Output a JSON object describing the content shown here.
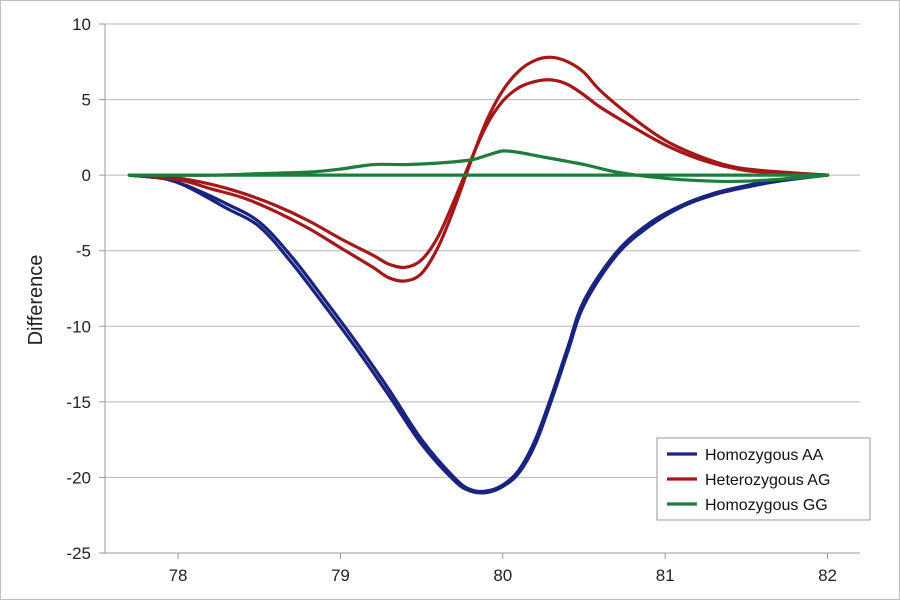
{
  "chart_data": {
    "type": "line",
    "title": "",
    "xlabel": "",
    "ylabel": "Difference",
    "xlim": [
      77.55,
      82.2
    ],
    "ylim": [
      -25,
      10
    ],
    "x_ticks": [
      "78",
      "79",
      "80",
      "81",
      "82"
    ],
    "y_ticks": [
      "10",
      "5",
      "0",
      "-5",
      "-10",
      "-15",
      "-20",
      "-25"
    ],
    "grid": "horizontal",
    "legend_position": "bottom-right",
    "colors": {
      "Homozygous AA": "#1a237e",
      "Heterozygous AG": "#a31818",
      "Homozygous GG": "#1e7d3a"
    },
    "series": [
      {
        "name": "Homozygous AA",
        "x": [
          77.7,
          77.9,
          78.0,
          78.1,
          78.3,
          78.5,
          78.7,
          78.9,
          79.1,
          79.3,
          79.5,
          79.7,
          79.8,
          79.9,
          80.0,
          80.1,
          80.2,
          80.3,
          80.4,
          80.5,
          80.7,
          80.9,
          81.1,
          81.3,
          81.5,
          81.7,
          82.0
        ],
        "y": [
          0,
          -0.2,
          -0.5,
          -1.0,
          -2.2,
          -3.4,
          -5.8,
          -8.6,
          -11.5,
          -14.6,
          -17.8,
          -20.2,
          -20.9,
          -21.0,
          -20.6,
          -19.7,
          -17.8,
          -14.9,
          -11.7,
          -8.6,
          -5.3,
          -3.4,
          -2.1,
          -1.3,
          -0.8,
          -0.4,
          0
        ]
      },
      {
        "name": "Homozygous AA",
        "x": [
          77.7,
          77.9,
          78.0,
          78.1,
          78.3,
          78.5,
          78.7,
          78.9,
          79.1,
          79.3,
          79.5,
          79.7,
          79.8,
          79.9,
          80.0,
          80.1,
          80.2,
          80.3,
          80.4,
          80.5,
          80.7,
          80.9,
          81.1,
          81.3,
          81.5,
          81.7,
          82.0
        ],
        "y": [
          0,
          -0.2,
          -0.5,
          -0.9,
          -1.9,
          -3.1,
          -5.4,
          -8.2,
          -11.1,
          -14.2,
          -17.5,
          -20.0,
          -20.8,
          -20.9,
          -20.5,
          -19.5,
          -17.5,
          -14.6,
          -11.4,
          -8.3,
          -5.1,
          -3.2,
          -2.0,
          -1.2,
          -0.7,
          -0.3,
          0
        ]
      },
      {
        "name": "Heterozygous AG",
        "x": [
          77.7,
          78.0,
          78.2,
          78.4,
          78.6,
          78.8,
          79.0,
          79.2,
          79.3,
          79.4,
          79.5,
          79.6,
          79.7,
          79.8,
          79.9,
          80.0,
          80.1,
          80.2,
          80.3,
          80.4,
          80.5,
          80.6,
          80.8,
          81.0,
          81.2,
          81.4,
          81.6,
          82.0
        ],
        "y": [
          0,
          -0.3,
          -0.9,
          -1.5,
          -2.4,
          -3.5,
          -4.8,
          -6.1,
          -6.8,
          -7.0,
          -6.5,
          -4.8,
          -2.2,
          0.8,
          3.6,
          5.6,
          6.9,
          7.6,
          7.8,
          7.5,
          6.8,
          5.6,
          3.8,
          2.3,
          1.3,
          0.6,
          0.3,
          0
        ]
      },
      {
        "name": "Heterozygous AG",
        "x": [
          77.7,
          78.0,
          78.2,
          78.4,
          78.6,
          78.8,
          79.0,
          79.2,
          79.3,
          79.4,
          79.5,
          79.6,
          79.7,
          79.8,
          79.9,
          80.0,
          80.1,
          80.2,
          80.3,
          80.4,
          80.5,
          80.6,
          80.8,
          81.0,
          81.2,
          81.4,
          81.6,
          82.0
        ],
        "y": [
          0,
          -0.2,
          -0.6,
          -1.2,
          -2.0,
          -3.0,
          -4.2,
          -5.3,
          -5.9,
          -6.1,
          -5.6,
          -4.1,
          -1.7,
          0.9,
          3.3,
          4.9,
          5.8,
          6.2,
          6.3,
          6.0,
          5.3,
          4.5,
          3.2,
          2.0,
          1.1,
          0.5,
          0.2,
          0
        ]
      },
      {
        "name": "Homozygous GG",
        "x": [
          77.7,
          78.2,
          78.5,
          78.8,
          79.0,
          79.2,
          79.4,
          79.6,
          79.8,
          79.9,
          80.0,
          80.1,
          80.2,
          80.3,
          80.5,
          80.7,
          80.9,
          81.1,
          81.3,
          81.5,
          81.8,
          82.0
        ],
        "y": [
          0,
          0,
          0.1,
          0.2,
          0.4,
          0.7,
          0.7,
          0.8,
          1.0,
          1.3,
          1.6,
          1.5,
          1.3,
          1.1,
          0.7,
          0.2,
          -0.1,
          -0.3,
          -0.4,
          -0.4,
          -0.2,
          0
        ]
      },
      {
        "name": "Homozygous GG",
        "x": [
          77.7,
          82.0
        ],
        "y": [
          0,
          0
        ]
      }
    ],
    "legend": [
      "Homozygous AA",
      "Heterozygous AG",
      "Homozygous GG"
    ]
  }
}
